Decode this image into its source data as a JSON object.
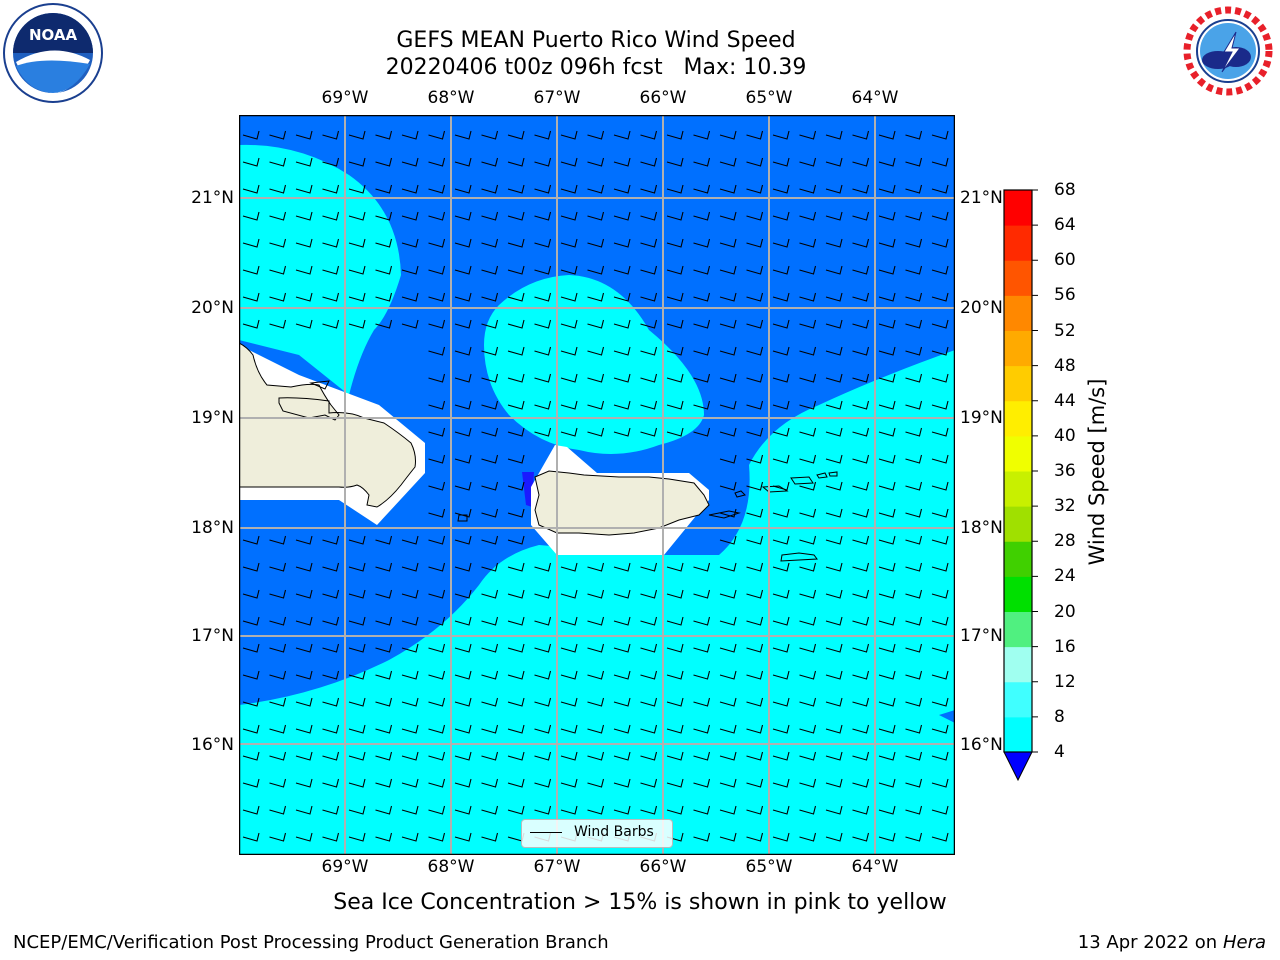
{
  "header": {
    "title_line1": "GEFS MEAN Puerto Rico Wind Speed",
    "title_line2": "20220406 t00z 096h fcst   Max: 10.39"
  },
  "logos": {
    "left": "NOAA",
    "right": "NATIONAL WEATHER SERVICE"
  },
  "map": {
    "lon_labels": [
      "69°W",
      "68°W",
      "67°W",
      "66°W",
      "65°W",
      "64°W"
    ],
    "lat_labels": [
      "21°N",
      "20°N",
      "19°N",
      "18°N",
      "17°N",
      "16°N"
    ],
    "legend_label": "Wind Barbs",
    "colors": {
      "dark_blue": "#0070ff",
      "cyan": "#00ffff",
      "land": "#efeedb",
      "grid": "#b0b0b0"
    }
  },
  "colorbar": {
    "label": "Wind Speed [m/s]",
    "ticks": [
      "4",
      "8",
      "12",
      "16",
      "20",
      "24",
      "28",
      "32",
      "36",
      "40",
      "44",
      "48",
      "52",
      "56",
      "60",
      "64",
      "68"
    ],
    "colors": [
      "#0070ff",
      "#00ffff",
      "#40ffff",
      "#a0fff0",
      "#50f080",
      "#00e000",
      "#40d000",
      "#a0e000",
      "#c8f000",
      "#f0ff00",
      "#ffee00",
      "#ffcc00",
      "#ffaa00",
      "#ff8800",
      "#ff5500",
      "#ff2a00",
      "#ff0000"
    ],
    "under_color": "#0000ff"
  },
  "note": "Sea Ice Concentration > 15% is shown in pink to yellow",
  "footer": {
    "left": "NCEP/EMC/Verification Post Processing Product Generation Branch",
    "right_date": "13 Apr 2022 on ",
    "right_machine": "Hera"
  }
}
